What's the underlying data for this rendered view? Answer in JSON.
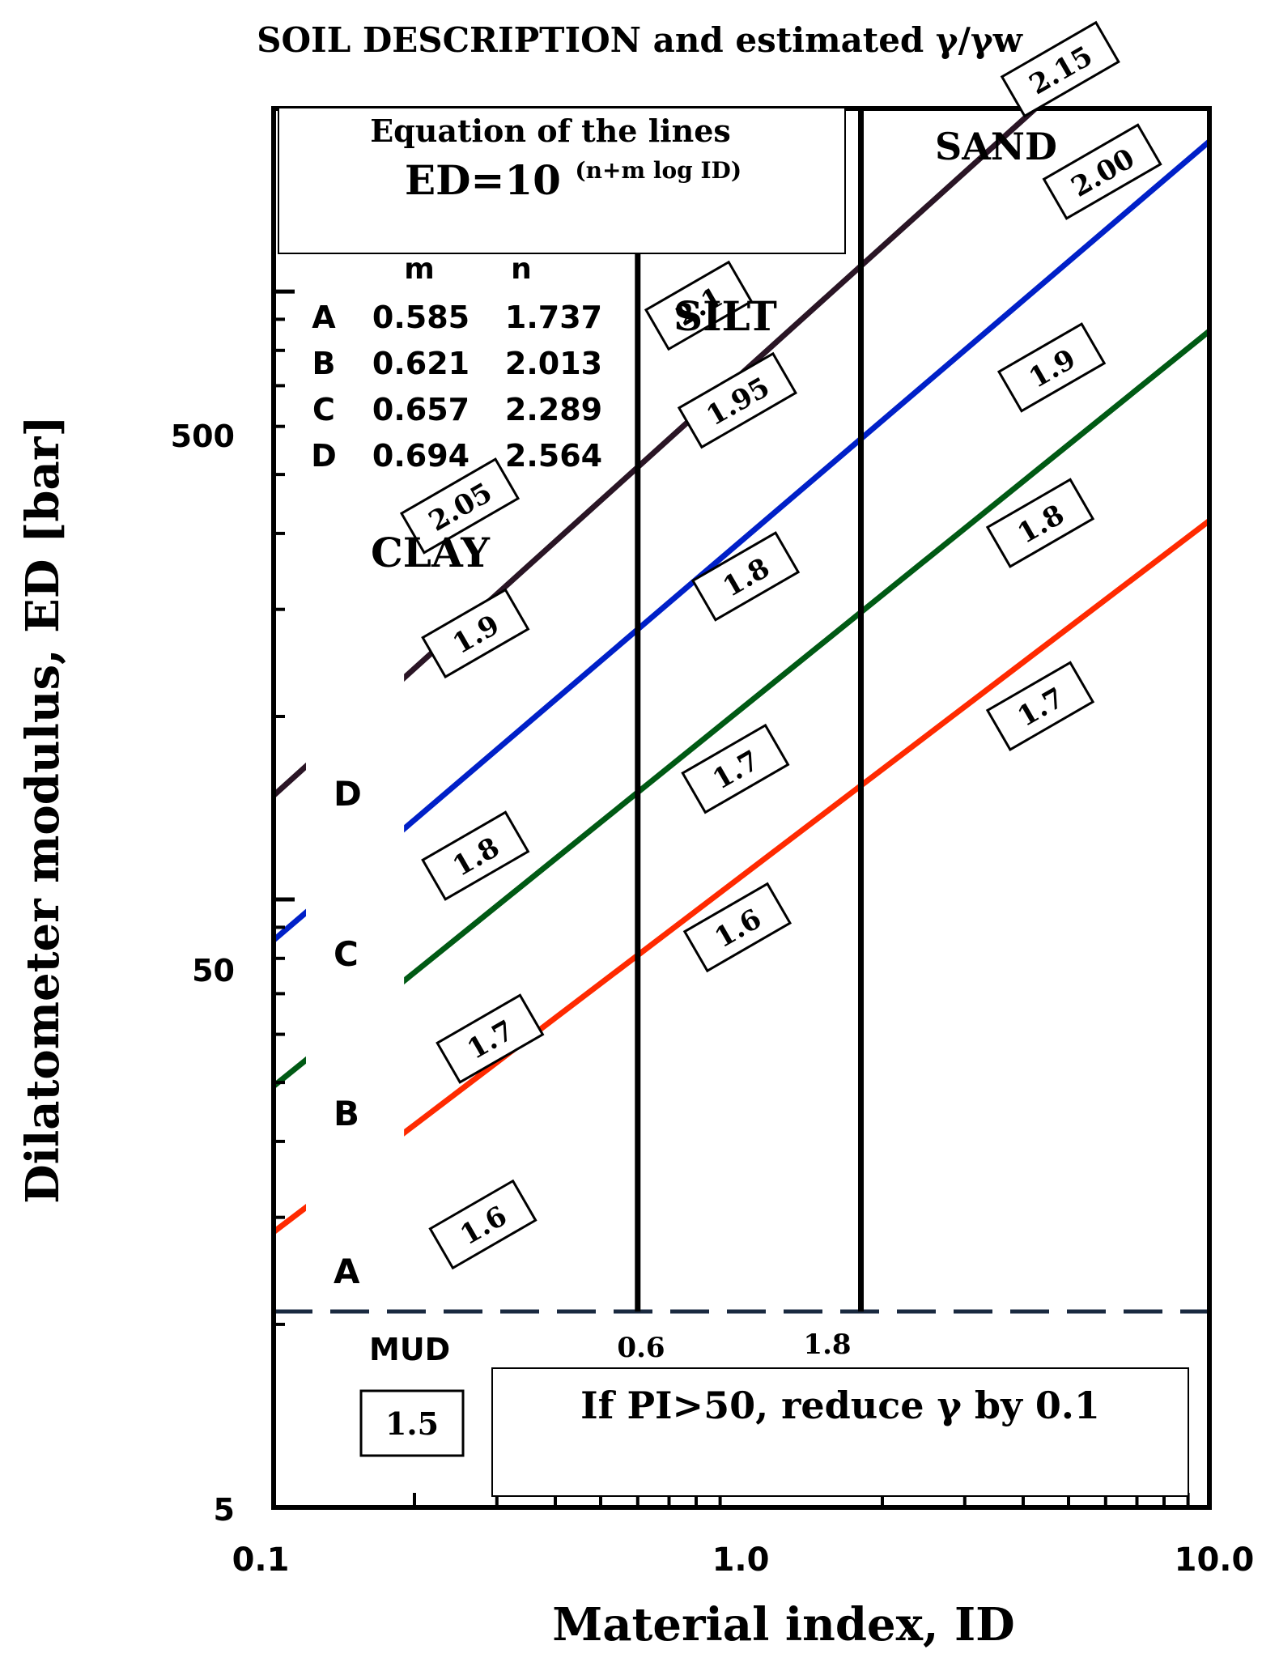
{
  "chart_data": {
    "type": "line",
    "title": "SOIL DESCRIPTION and estimated γ/γw",
    "xlabel": "Material index, ID",
    "ylabel": "Dilatometer modulus, ED [bar]",
    "xscale": "log",
    "yscale": "log",
    "xlim": [
      0.1,
      10.0
    ],
    "ylim": [
      5,
      1000
    ],
    "x_tick_labels": [
      "0.1",
      "1.0",
      "10.0"
    ],
    "y_tick_labels": [
      "5",
      "50",
      "500"
    ],
    "equation_box": {
      "heading": "Equation of the lines",
      "formula_base": "ED=10",
      "formula_exponent": "(n+m log ID)"
    },
    "coef_table": {
      "headers": [
        "m",
        "n"
      ],
      "rows": [
        {
          "line": "A",
          "m": "0.585",
          "n": "1.737"
        },
        {
          "line": "B",
          "m": "0.621",
          "n": "2.013"
        },
        {
          "line": "C",
          "m": "0.657",
          "n": "2.289"
        },
        {
          "line": "D",
          "m": "0.694",
          "n": "2.564"
        }
      ]
    },
    "series": [
      {
        "name": "A",
        "color": "#ff2a00",
        "m": 0.585,
        "n": 1.737,
        "x_range": [
          0.1,
          10.0
        ]
      },
      {
        "name": "B",
        "color": "#005a14",
        "m": 0.621,
        "n": 2.013,
        "x_range": [
          0.1,
          10.0
        ]
      },
      {
        "name": "C",
        "color": "#0020c8",
        "m": 0.657,
        "n": 2.289,
        "x_range": [
          0.1,
          10.0
        ]
      },
      {
        "name": "D",
        "color": "#2a1525",
        "m": 0.694,
        "n": 2.564,
        "x_range": [
          0.1,
          10.0
        ]
      }
    ],
    "soil_boundaries": [
      {
        "x": 0.6,
        "label": "0.6"
      },
      {
        "x": 1.8,
        "label": "1.8"
      }
    ],
    "mud_limit": {
      "y": 10.5,
      "label": "MUD",
      "gamma": "1.5"
    },
    "zone_labels": {
      "clay": "CLAY",
      "silt": "SILT",
      "sand": "SAND"
    },
    "gamma_labels": [
      {
        "text": "1.6",
        "x": 0.28,
        "y": 14.6
      },
      {
        "text": "1.7",
        "x": 0.29,
        "y": 29.5
      },
      {
        "text": "1.8",
        "x": 0.27,
        "y": 59
      },
      {
        "text": "1.9",
        "x": 0.27,
        "y": 137
      },
      {
        "text": "2.05",
        "x": 0.25,
        "y": 222
      },
      {
        "text": "1.6",
        "x": 0.98,
        "y": 45
      },
      {
        "text": "1.7",
        "x": 0.97,
        "y": 82
      },
      {
        "text": "1.8",
        "x": 1.02,
        "y": 170
      },
      {
        "text": "1.95",
        "x": 0.98,
        "y": 331
      },
      {
        "text": "2.1",
        "x": 0.81,
        "y": 474
      },
      {
        "text": "1.7",
        "x": 4.35,
        "y": 104
      },
      {
        "text": "1.8",
        "x": 4.35,
        "y": 208
      },
      {
        "text": "1.9",
        "x": 4.6,
        "y": 375
      },
      {
        "text": "2.00",
        "x": 5.9,
        "y": 787
      },
      {
        "text": "2.15",
        "x": 4.8,
        "y": 1160
      }
    ],
    "note": "If PI>50, reduce γ by 0.1"
  }
}
